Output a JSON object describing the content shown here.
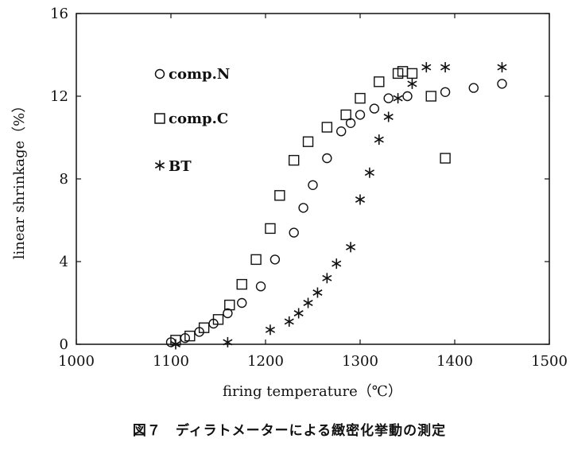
{
  "chart_data": {
    "type": "scatter",
    "xlabel": "firing temperature（℃）",
    "ylabel": "linear shrinkage（%）",
    "xlim": [
      1000,
      1500
    ],
    "ylim": [
      0,
      16
    ],
    "x_ticks": [
      "1000",
      "1100",
      "1200",
      "1300",
      "1400",
      "1500"
    ],
    "y_ticks": [
      "0",
      "4",
      "8",
      "12",
      "16"
    ],
    "caption": "図７　ディラトメーターによる緻密化挙動の測定",
    "series": [
      {
        "name": "comp.N",
        "marker": "circle",
        "points": [
          [
            1100,
            0.1
          ],
          [
            1115,
            0.3
          ],
          [
            1130,
            0.6
          ],
          [
            1145,
            1.0
          ],
          [
            1160,
            1.5
          ],
          [
            1175,
            2.0
          ],
          [
            1195,
            2.8
          ],
          [
            1210,
            4.1
          ],
          [
            1230,
            5.4
          ],
          [
            1240,
            6.6
          ],
          [
            1250,
            7.7
          ],
          [
            1265,
            9.0
          ],
          [
            1280,
            10.3
          ],
          [
            1290,
            10.7
          ],
          [
            1300,
            11.1
          ],
          [
            1315,
            11.4
          ],
          [
            1330,
            11.9
          ],
          [
            1350,
            12.0
          ],
          [
            1390,
            12.2
          ],
          [
            1420,
            12.4
          ],
          [
            1450,
            12.6
          ]
        ]
      },
      {
        "name": "comp.C",
        "marker": "square",
        "points": [
          [
            1105,
            0.2
          ],
          [
            1120,
            0.4
          ],
          [
            1135,
            0.8
          ],
          [
            1150,
            1.2
          ],
          [
            1162,
            1.9
          ],
          [
            1175,
            2.9
          ],
          [
            1190,
            4.1
          ],
          [
            1205,
            5.6
          ],
          [
            1215,
            7.2
          ],
          [
            1230,
            8.9
          ],
          [
            1245,
            9.8
          ],
          [
            1265,
            10.5
          ],
          [
            1285,
            11.1
          ],
          [
            1300,
            11.9
          ],
          [
            1320,
            12.7
          ],
          [
            1340,
            13.1
          ],
          [
            1345,
            13.2
          ],
          [
            1355,
            13.1
          ],
          [
            1375,
            12.0
          ],
          [
            1390,
            9.0
          ]
        ]
      },
      {
        "name": "BT",
        "marker": "asterisk",
        "points": [
          [
            1105,
            0.0
          ],
          [
            1160,
            0.1
          ],
          [
            1205,
            0.7
          ],
          [
            1225,
            1.1
          ],
          [
            1235,
            1.5
          ],
          [
            1245,
            2.0
          ],
          [
            1255,
            2.5
          ],
          [
            1265,
            3.2
          ],
          [
            1275,
            3.9
          ],
          [
            1290,
            4.7
          ],
          [
            1300,
            7.0
          ],
          [
            1310,
            8.3
          ],
          [
            1320,
            9.9
          ],
          [
            1330,
            11.0
          ],
          [
            1340,
            11.9
          ],
          [
            1355,
            12.6
          ],
          [
            1370,
            13.4
          ],
          [
            1390,
            13.4
          ],
          [
            1450,
            13.4
          ]
        ]
      }
    ],
    "legend": {
      "position": "top-left",
      "entries": [
        "comp.N",
        "comp.C",
        "BT"
      ]
    }
  }
}
